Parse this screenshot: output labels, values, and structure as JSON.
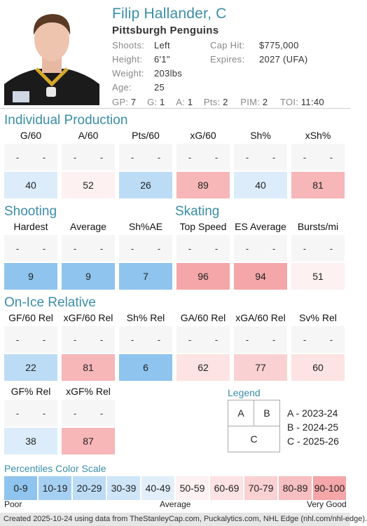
{
  "player": {
    "name": "Filip Hallander, C",
    "team": "Pittsburgh Penguins",
    "shoots_label": "Shoots:",
    "shoots": "Left",
    "height_label": "Height:",
    "height": "6'1\"",
    "weight_label": "Weight:",
    "weight": "203lbs",
    "age_label": "Age:",
    "age": "25",
    "caphit_label": "Cap Hit:",
    "caphit": "$775,000",
    "expires_label": "Expires:",
    "expires": "2027 (UFA)",
    "gp_label": "GP:",
    "gp": "7",
    "g_label": "G:",
    "g": "1",
    "a_label": "A:",
    "a": "1",
    "pts_label": "Pts:",
    "pts": "2",
    "pim_label": "PIM:",
    "pim": "2",
    "toi_label": "TOI:",
    "toi": "11:40"
  },
  "sections": {
    "production": "Individual Production",
    "shooting": "Shooting",
    "skating": "Skating",
    "onice": "On-Ice Relative",
    "legend": "Legend",
    "scale": "Percentiles Color Scale"
  },
  "blank": "-",
  "production": [
    {
      "label": "G/60",
      "value": "40",
      "color": "#dcecfa"
    },
    {
      "label": "A/60",
      "value": "52",
      "color": "#fdf1f1"
    },
    {
      "label": "Pts/60",
      "value": "26",
      "color": "#bcdcf6"
    },
    {
      "label": "xG/60",
      "value": "89",
      "color": "#f7b6b8"
    },
    {
      "label": "Sh%",
      "value": "40",
      "color": "#dcecfa"
    },
    {
      "label": "xSh%",
      "value": "81",
      "color": "#f7b6b8"
    }
  ],
  "shooting": [
    {
      "label": "Hardest",
      "value": "9",
      "color": "#8ec4ee"
    },
    {
      "label": "Average",
      "value": "9",
      "color": "#8ec4ee"
    },
    {
      "label": "Sh%AE",
      "value": "7",
      "color": "#8ec4ee"
    }
  ],
  "skating": [
    {
      "label": "Top Speed",
      "value": "96",
      "color": "#f4a6a8"
    },
    {
      "label": "ES Average",
      "value": "94",
      "color": "#f4a6a8"
    },
    {
      "label": "Bursts/mi",
      "value": "51",
      "color": "#fdf1f1"
    }
  ],
  "onice": [
    {
      "label": "GF/60 Rel",
      "value": "22",
      "color": "#bcdcf6"
    },
    {
      "label": "xGF/60 Rel",
      "value": "81",
      "color": "#f7b6b8"
    },
    {
      "label": "Sh% Rel",
      "value": "6",
      "color": "#8ec4ee"
    },
    {
      "label": "GA/60 Rel",
      "value": "62",
      "color": "#fde3e3"
    },
    {
      "label": "xGA/60 Rel",
      "value": "77",
      "color": "#fad1d2"
    },
    {
      "label": "Sv% Rel",
      "value": "60",
      "color": "#fde3e3"
    }
  ],
  "onice2": [
    {
      "label": "GF% Rel",
      "value": "38",
      "color": "#dcecfa"
    },
    {
      "label": "xGF% Rel",
      "value": "87",
      "color": "#f7b6b8"
    }
  ],
  "legend": {
    "a": "A",
    "b": "B",
    "c": "C",
    "a_text": "A - 2023-24",
    "b_text": "B - 2024-25",
    "c_text": "C - 2025-26"
  },
  "scale": [
    {
      "label": "0-9",
      "color": "#8ec4ee"
    },
    {
      "label": "10-19",
      "color": "#a6d0f2"
    },
    {
      "label": "20-29",
      "color": "#bcdcf6"
    },
    {
      "label": "30-39",
      "color": "#cfe5f8"
    },
    {
      "label": "40-49",
      "color": "#e2effb"
    },
    {
      "label": "50-59",
      "color": "#fdf1f1"
    },
    {
      "label": "60-69",
      "color": "#fde3e3"
    },
    {
      "label": "70-79",
      "color": "#fad1d2"
    },
    {
      "label": "80-89",
      "color": "#f7bfc1"
    },
    {
      "label": "90-100",
      "color": "#f4a6a8"
    }
  ],
  "scale_labels": {
    "poor": "Poor",
    "average": "Average",
    "good": "Very Good"
  },
  "footer": "Created 2025-10-24 using data from TheStanleyCap.com, Puckalytics.com, NHL Edge (nhl.com/nhl-edge)."
}
